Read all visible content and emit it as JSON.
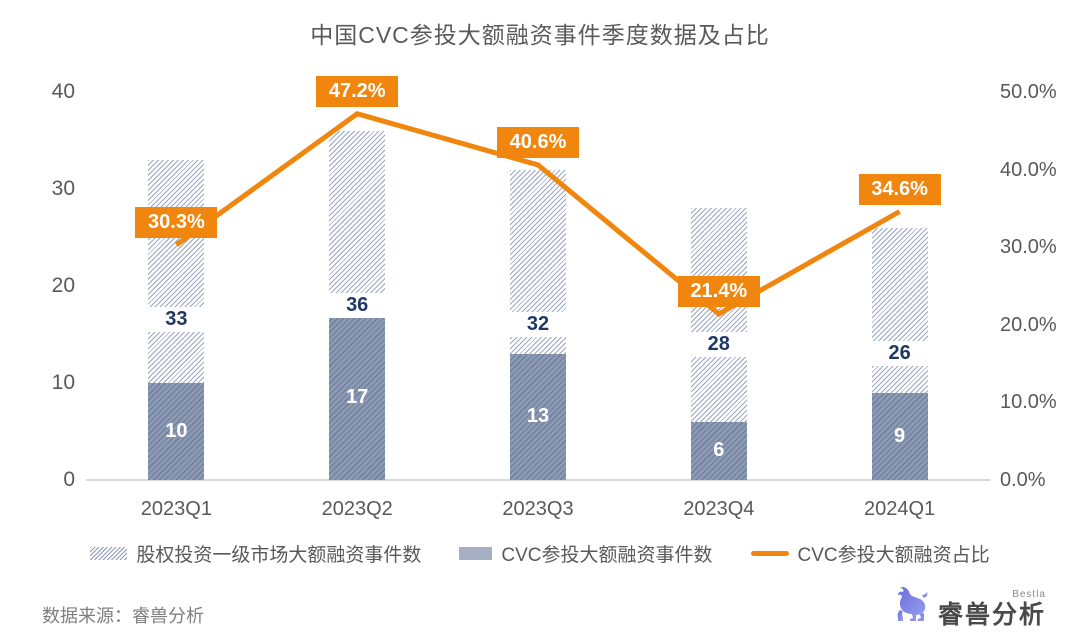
{
  "header": {
    "title": "中国CVC参投大额融资事件季度数据及占比"
  },
  "chart_data": {
    "type": "bar",
    "subtype": "bar-line-combo",
    "categories": [
      "2023Q1",
      "2023Q2",
      "2023Q3",
      "2023Q4",
      "2024Q1"
    ],
    "series": [
      {
        "name": "股权投资一级市场大额融资事件数",
        "kind": "bar",
        "style": "light-hatched",
        "axis": "left",
        "values": [
          33,
          36,
          32,
          28,
          26
        ]
      },
      {
        "name": "CVC参投大额融资事件数",
        "kind": "bar",
        "style": "dark-hatched",
        "axis": "left",
        "values": [
          10,
          17,
          13,
          6,
          9
        ]
      },
      {
        "name": "CVC参投大额融资占比",
        "kind": "line",
        "axis": "right",
        "values": [
          30.3,
          47.2,
          40.6,
          21.4,
          34.6
        ],
        "labels": [
          "30.3%",
          "47.2%",
          "40.6%",
          "21.4%",
          "34.6%"
        ]
      }
    ],
    "left_axis": {
      "min": 0,
      "max": 40,
      "ticks": [
        "40",
        "30",
        "20",
        "10",
        "0"
      ]
    },
    "right_axis": {
      "min": 0,
      "max": 50,
      "ticks": [
        "50.0%",
        "40.0%",
        "30.0%",
        "20.0%",
        "10.0%",
        "0.0%"
      ]
    },
    "grid": "off",
    "legend_position": "bottom",
    "colors": {
      "accent_orange": "#f0860d",
      "navy_text": "#1f3864",
      "bar_dark": "#8c9ab3",
      "bar_light_hatch": "#9aa6c0",
      "axis_text": "#595959",
      "axis_line": "#d9d9d9"
    }
  },
  "legend": {
    "items": [
      {
        "label": "股权投资一级市场大额融资事件数",
        "swatch": "hatched"
      },
      {
        "label": "CVC参投大额融资事件数",
        "swatch": "solid"
      },
      {
        "label": "CVC参投大额融资占比",
        "swatch": "line"
      }
    ]
  },
  "footer": {
    "source": "数据来源：睿兽分析",
    "logo_cn": "睿兽分析",
    "logo_en": "Bestla"
  }
}
